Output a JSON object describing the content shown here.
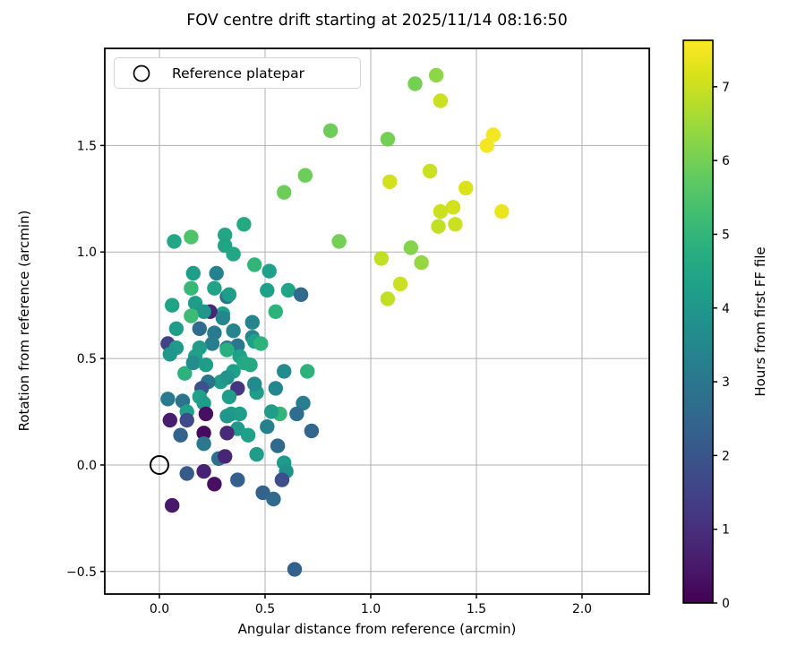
{
  "legend": {
    "label": "Reference platepar",
    "marker": "open-circle"
  },
  "chart_data": {
    "type": "scatter",
    "title": "FOV centre drift starting at 2025/11/14 08:16:50",
    "xlabel": "Angular distance from reference (arcmin)",
    "ylabel": "Rotation from reference (arcmin)",
    "xlim": [
      -0.2585,
      2.318
    ],
    "ylim": [
      -0.606,
      1.956
    ],
    "grid": true,
    "grid_color": "#b0b0b0",
    "x_ticks": [
      {
        "v": 0.0,
        "label": "0.0"
      },
      {
        "v": 0.5,
        "label": "0.5"
      },
      {
        "v": 1.0,
        "label": "1.0"
      },
      {
        "v": 1.5,
        "label": "1.5"
      },
      {
        "v": 2.0,
        "label": "2.0"
      }
    ],
    "y_ticks": [
      {
        "v": -0.5,
        "label": "−0.5"
      },
      {
        "v": 0.0,
        "label": "0.0"
      },
      {
        "v": 0.5,
        "label": "0.5"
      },
      {
        "v": 1.0,
        "label": "1.0"
      },
      {
        "v": 1.5,
        "label": "1.5"
      }
    ],
    "colorbar": {
      "label": "Hours from first FF file",
      "colormap": "viridis",
      "vmin": 0,
      "vmax": 7.63,
      "ticks": [
        {
          "v": 0,
          "label": "0"
        },
        {
          "v": 1,
          "label": "1"
        },
        {
          "v": 2,
          "label": "2"
        },
        {
          "v": 3,
          "label": "3"
        },
        {
          "v": 4,
          "label": "4"
        },
        {
          "v": 5,
          "label": "5"
        },
        {
          "v": 6,
          "label": "6"
        },
        {
          "v": 7,
          "label": "7"
        }
      ]
    },
    "reference_point": {
      "x": 0.0,
      "y": 0.0,
      "label": "Reference platepar"
    },
    "series": [
      {
        "name": "FOV centre positions",
        "value_key": "hours_from_first_FF_file",
        "points": [
          [
            1.21,
            1.79,
            6.0
          ],
          [
            1.31,
            1.83,
            6.3
          ],
          [
            1.33,
            1.71,
            7.0
          ],
          [
            1.08,
            1.53,
            6.0
          ],
          [
            1.58,
            1.55,
            7.5
          ],
          [
            1.55,
            1.5,
            7.5
          ],
          [
            1.28,
            1.38,
            7.0
          ],
          [
            1.09,
            1.33,
            7.1
          ],
          [
            1.45,
            1.3,
            7.2
          ],
          [
            1.39,
            1.21,
            7.1
          ],
          [
            1.33,
            1.19,
            7.0
          ],
          [
            1.62,
            1.19,
            7.4
          ],
          [
            1.32,
            1.12,
            6.9
          ],
          [
            1.4,
            1.13,
            7.0
          ],
          [
            0.85,
            1.05,
            6.0
          ],
          [
            1.19,
            1.02,
            6.2
          ],
          [
            1.05,
            0.97,
            6.9
          ],
          [
            1.24,
            0.95,
            6.4
          ],
          [
            1.14,
            0.85,
            7.0
          ],
          [
            1.08,
            0.78,
            6.9
          ],
          [
            0.81,
            1.57,
            5.9
          ],
          [
            0.69,
            1.36,
            5.9
          ],
          [
            0.59,
            1.28,
            5.9
          ],
          [
            0.4,
            1.13,
            4.6
          ],
          [
            0.31,
            1.08,
            4.5
          ],
          [
            0.31,
            1.03,
            4.4
          ],
          [
            0.35,
            0.99,
            4.5
          ],
          [
            0.07,
            1.05,
            4.5
          ],
          [
            0.15,
            1.07,
            5.5
          ],
          [
            0.45,
            0.94,
            5.0
          ],
          [
            0.16,
            0.9,
            4.2
          ],
          [
            0.27,
            0.9,
            3.3
          ],
          [
            0.52,
            0.91,
            4.3
          ],
          [
            0.51,
            0.82,
            4.3
          ],
          [
            0.32,
            0.79,
            2.8
          ],
          [
            0.61,
            0.82,
            4.4
          ],
          [
            0.67,
            0.8,
            2.6
          ],
          [
            0.55,
            0.72,
            4.9
          ],
          [
            0.3,
            0.71,
            4.3
          ],
          [
            0.44,
            0.67,
            3.4
          ],
          [
            0.15,
            0.83,
            5.1
          ],
          [
            0.26,
            0.83,
            4.4
          ],
          [
            0.33,
            0.8,
            4.2
          ],
          [
            0.06,
            0.75,
            4.4
          ],
          [
            0.24,
            0.72,
            0.8
          ],
          [
            0.17,
            0.76,
            4.2
          ],
          [
            0.21,
            0.72,
            4.0
          ],
          [
            0.15,
            0.7,
            5.2
          ],
          [
            0.3,
            0.69,
            3.5
          ],
          [
            0.19,
            0.64,
            2.6
          ],
          [
            0.08,
            0.64,
            4.2
          ],
          [
            0.26,
            0.62,
            3.1
          ],
          [
            0.35,
            0.63,
            3.4
          ],
          [
            0.04,
            0.57,
            1.5
          ],
          [
            0.08,
            0.55,
            4.1
          ],
          [
            0.05,
            0.52,
            4.0
          ],
          [
            0.25,
            0.57,
            3.2
          ],
          [
            0.19,
            0.55,
            4.2
          ],
          [
            0.32,
            0.55,
            2.9
          ],
          [
            0.37,
            0.56,
            3.0
          ],
          [
            0.44,
            0.6,
            3.4
          ],
          [
            0.45,
            0.58,
            4.3
          ],
          [
            0.48,
            0.57,
            4.9
          ],
          [
            0.17,
            0.51,
            4.3
          ],
          [
            0.32,
            0.54,
            4.8
          ],
          [
            0.38,
            0.51,
            4.3
          ],
          [
            0.59,
            0.44,
            3.6
          ],
          [
            0.7,
            0.44,
            4.9
          ],
          [
            0.55,
            0.36,
            3.5
          ],
          [
            0.68,
            0.29,
            3.2
          ],
          [
            0.57,
            0.24,
            5.0
          ],
          [
            0.53,
            0.25,
            4.2
          ],
          [
            0.65,
            0.24,
            2.7
          ],
          [
            0.51,
            0.18,
            3.3
          ],
          [
            0.72,
            0.16,
            2.5
          ],
          [
            0.56,
            0.09,
            2.6
          ],
          [
            0.59,
            0.01,
            4.1
          ],
          [
            0.6,
            -0.03,
            3.8
          ],
          [
            0.58,
            -0.07,
            1.8
          ],
          [
            0.49,
            -0.13,
            2.4
          ],
          [
            0.54,
            -0.16,
            2.6
          ],
          [
            0.12,
            0.43,
            4.9
          ],
          [
            0.16,
            0.48,
            3.7
          ],
          [
            0.22,
            0.47,
            4.2
          ],
          [
            0.35,
            0.44,
            4.3
          ],
          [
            0.4,
            0.48,
            4.6
          ],
          [
            0.43,
            0.47,
            4.6
          ],
          [
            0.29,
            0.39,
            4.2
          ],
          [
            0.32,
            0.41,
            3.9
          ],
          [
            0.23,
            0.39,
            2.9
          ],
          [
            0.37,
            0.36,
            1.2
          ],
          [
            0.33,
            0.32,
            4.2
          ],
          [
            0.2,
            0.36,
            1.9
          ],
          [
            0.19,
            0.32,
            4.3
          ],
          [
            0.04,
            0.31,
            3.1
          ],
          [
            0.11,
            0.3,
            2.9
          ],
          [
            0.46,
            0.34,
            4.2
          ],
          [
            0.45,
            0.38,
            3.6
          ],
          [
            0.13,
            0.25,
            4.3
          ],
          [
            0.21,
            0.29,
            4.2
          ],
          [
            0.05,
            0.21,
            0.6
          ],
          [
            0.13,
            0.21,
            1.7
          ],
          [
            0.22,
            0.24,
            0.3
          ],
          [
            0.34,
            0.24,
            4.1
          ],
          [
            0.38,
            0.24,
            4.2
          ],
          [
            0.32,
            0.23,
            4.0
          ],
          [
            0.37,
            0.17,
            4.1
          ],
          [
            0.32,
            0.15,
            0.9
          ],
          [
            0.1,
            0.14,
            2.4
          ],
          [
            0.21,
            0.15,
            0.2
          ],
          [
            0.42,
            0.14,
            4.3
          ],
          [
            0.21,
            0.1,
            3.0
          ],
          [
            0.46,
            0.05,
            4.2
          ],
          [
            0.28,
            0.03,
            2.8
          ],
          [
            0.31,
            0.04,
            0.8
          ],
          [
            0.13,
            -0.04,
            2.2
          ],
          [
            0.21,
            -0.03,
            0.7
          ],
          [
            0.26,
            -0.09,
            0.3
          ],
          [
            0.37,
            -0.07,
            2.3
          ],
          [
            0.06,
            -0.19,
            0.5
          ],
          [
            0.64,
            -0.49,
            2.3
          ]
        ]
      }
    ]
  }
}
